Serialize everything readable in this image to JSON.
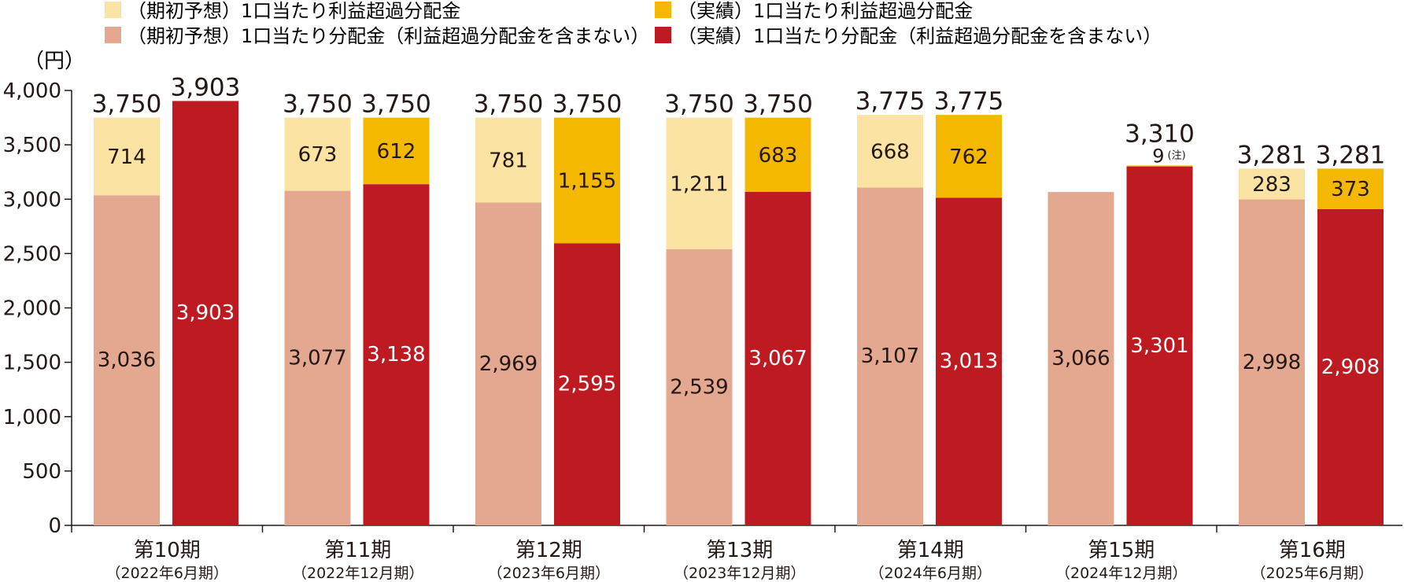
{
  "legend": [
    {
      "label": "（期初予想）1口当たり利益超過分配金",
      "color": "#FBE3A3"
    },
    {
      "label": "（実績）1口当たり利益超過分配金",
      "color": "#F5B800"
    },
    {
      "label": "（期初予想）1口当たり分配金（利益超過分配金を含まない）",
      "color": "#E4A891"
    },
    {
      "label": "（実績）1口当たり分配金（利益超過分配金を含まない）",
      "color": "#BE1A22"
    }
  ],
  "y_unit": "（円）",
  "colors": {
    "forecast_base": "#E4A891",
    "forecast_excess": "#FBE3A3",
    "actual_base": "#BE1A22",
    "actual_excess": "#F5B800",
    "axis": "#231815",
    "label_dark": "#231815",
    "label_light": "#ffffff"
  },
  "chart_data": {
    "type": "bar",
    "stacked": true,
    "ylim": [
      0,
      4000
    ],
    "yticks": [
      0,
      500,
      1000,
      1500,
      2000,
      2500,
      3000,
      3500,
      4000
    ],
    "ytick_labels": [
      "0",
      "500",
      "1,000",
      "1,500",
      "2,000",
      "2,500",
      "3,000",
      "3,500",
      "4,000"
    ],
    "grid": false,
    "legend_position": "top",
    "periods": [
      {
        "name": "第10期",
        "sub": "（2022年6月期）",
        "forecast": {
          "base": 3036,
          "excess": 714,
          "total": 3750,
          "base_label": "3,036",
          "excess_label": "714",
          "total_label": "3,750"
        },
        "actual": {
          "base": 3903,
          "excess": 0,
          "total": 3903,
          "base_label": "3,903",
          "excess_label": "",
          "total_label": "3,903"
        }
      },
      {
        "name": "第11期",
        "sub": "（2022年12月期）",
        "forecast": {
          "base": 3077,
          "excess": 673,
          "total": 3750,
          "base_label": "3,077",
          "excess_label": "673",
          "total_label": "3,750"
        },
        "actual": {
          "base": 3138,
          "excess": 612,
          "total": 3750,
          "base_label": "3,138",
          "excess_label": "612",
          "total_label": "3,750"
        }
      },
      {
        "name": "第12期",
        "sub": "（2023年6月期）",
        "forecast": {
          "base": 2969,
          "excess": 781,
          "total": 3750,
          "base_label": "2,969",
          "excess_label": "781",
          "total_label": "3,750"
        },
        "actual": {
          "base": 2595,
          "excess": 1155,
          "total": 3750,
          "base_label": "2,595",
          "excess_label": "1,155",
          "total_label": "3,750"
        }
      },
      {
        "name": "第13期",
        "sub": "（2023年12月期）",
        "forecast": {
          "base": 2539,
          "excess": 1211,
          "total": 3750,
          "base_label": "2,539",
          "excess_label": "1,211",
          "total_label": "3,750"
        },
        "actual": {
          "base": 3067,
          "excess": 683,
          "total": 3750,
          "base_label": "3,067",
          "excess_label": "683",
          "total_label": "3,750"
        }
      },
      {
        "name": "第14期",
        "sub": "（2024年6月期）",
        "forecast": {
          "base": 3107,
          "excess": 668,
          "total": 3775,
          "base_label": "3,107",
          "excess_label": "668",
          "total_label": "3,775"
        },
        "actual": {
          "base": 3013,
          "excess": 762,
          "total": 3775,
          "base_label": "3,013",
          "excess_label": "762",
          "total_label": "3,775"
        }
      },
      {
        "name": "第15期",
        "sub": "（2024年12月期）",
        "forecast": {
          "base": 3066,
          "excess": 0,
          "total": 3066,
          "base_label": "3,066",
          "excess_label": "",
          "total_label": ""
        },
        "actual": {
          "base": 3301,
          "excess": 9,
          "total": 3310,
          "base_label": "3,301",
          "excess_label": "9",
          "excess_note": "(注)",
          "total_label": "3,310"
        }
      },
      {
        "name": "第16期",
        "sub": "（2025年6月期）",
        "forecast": {
          "base": 2998,
          "excess": 283,
          "total": 3281,
          "base_label": "2,998",
          "excess_label": "283",
          "total_label": "3,281"
        },
        "actual": {
          "base": 2908,
          "excess": 373,
          "total": 3281,
          "base_label": "2,908",
          "excess_label": "373",
          "total_label": "3,281"
        }
      }
    ]
  }
}
